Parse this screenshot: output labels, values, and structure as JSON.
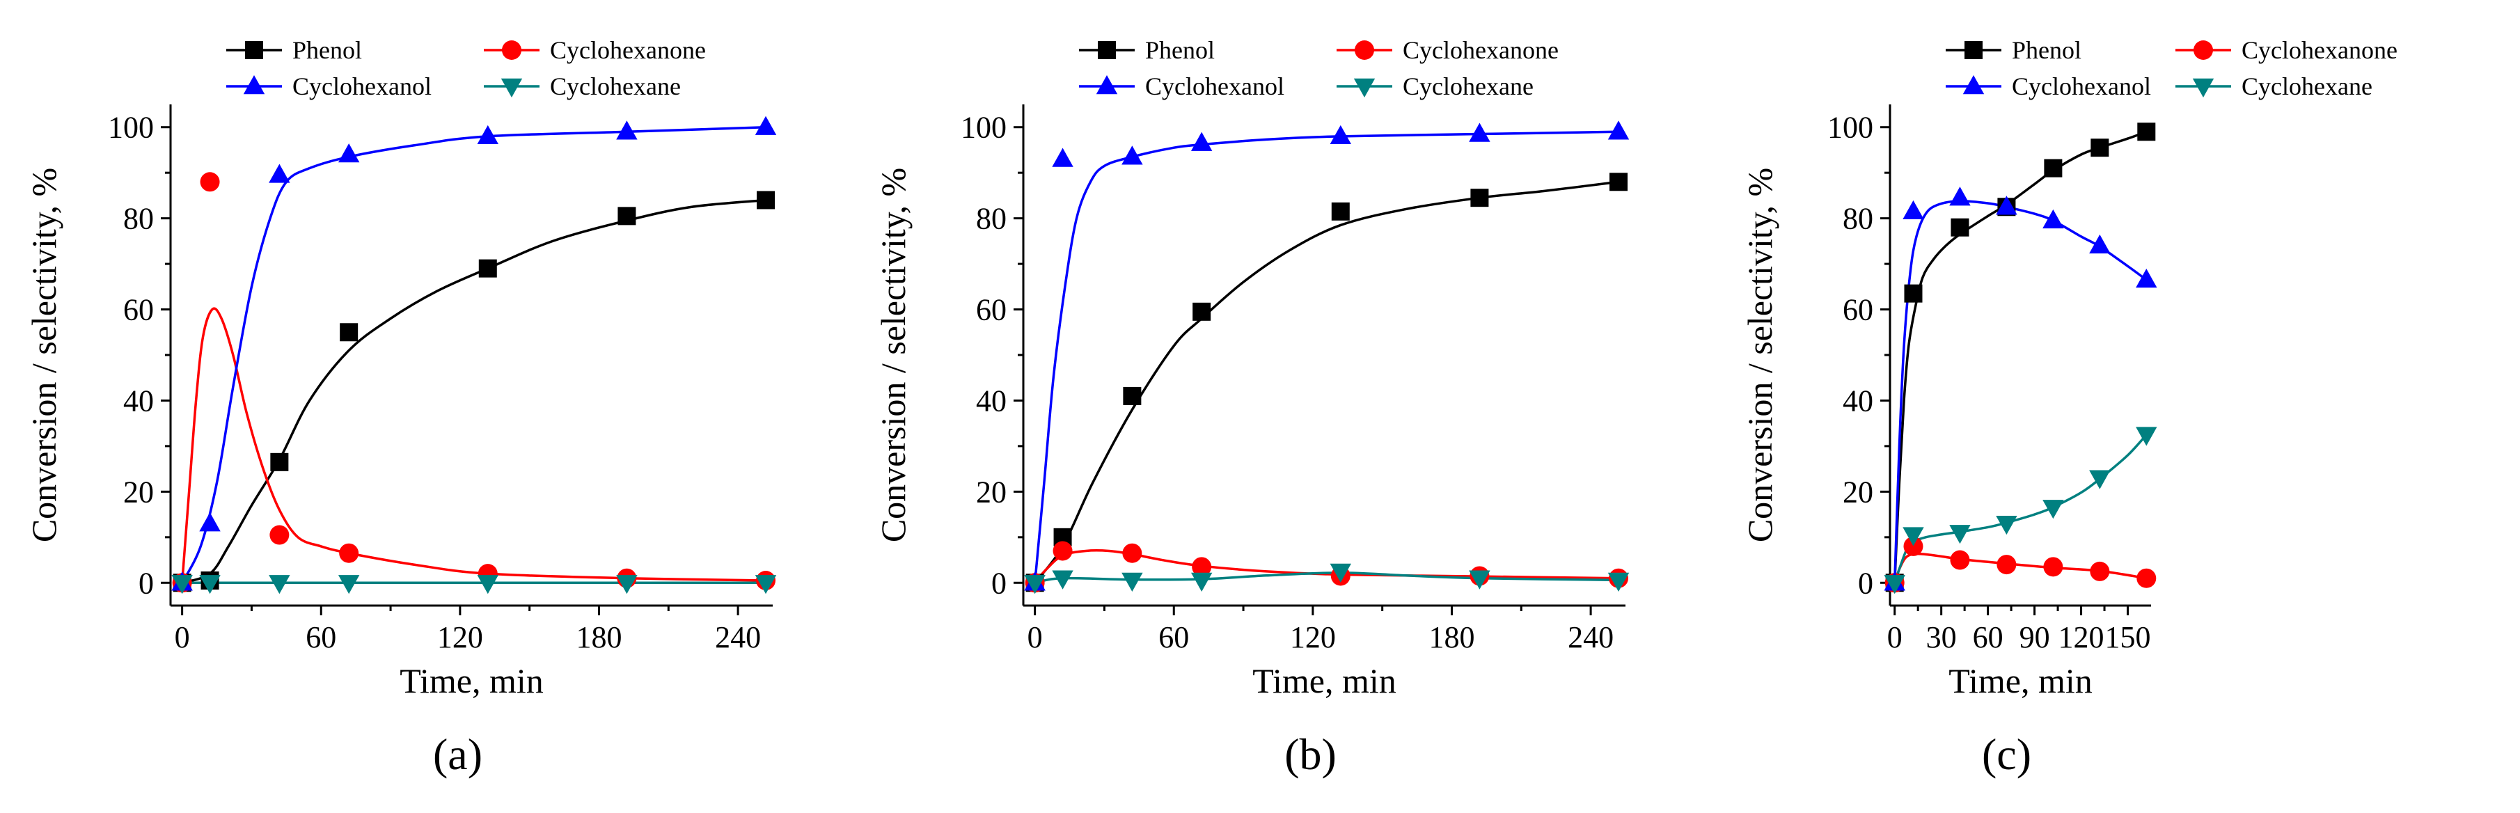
{
  "figure": {
    "panel_labels": [
      "(a)",
      "(b)",
      "(c)"
    ],
    "legend_entries": [
      {
        "name": "Phenol",
        "color": "#000000",
        "marker": "square"
      },
      {
        "name": "Cyclohexanone",
        "color": "#ff0000",
        "marker": "circle"
      },
      {
        "name": "Cyclohexanol",
        "color": "#0000ff",
        "marker": "triangle-up"
      },
      {
        "name": "Cyclohexane",
        "color": "#008080",
        "marker": "triangle-down"
      }
    ]
  },
  "chart_data": [
    {
      "type": "scatter",
      "panel": "(a)",
      "xlabel": "Time, min",
      "ylabel": "Conversion / selectivity, %",
      "xlim": [
        -5,
        255
      ],
      "ylim": [
        -5,
        105
      ],
      "xticks": [
        0,
        60,
        120,
        180,
        240
      ],
      "yticks": [
        0,
        20,
        40,
        60,
        80,
        100
      ],
      "series": [
        {
          "name": "Phenol",
          "color": "#000000",
          "marker": "square",
          "x": [
            0,
            12,
            42,
            72,
            132,
            192,
            252
          ],
          "y": [
            0,
            0.5,
            26.5,
            55,
            69,
            80.5,
            84
          ],
          "fit": [
            [
              0,
              0
            ],
            [
              12,
              2
            ],
            [
              20,
              8
            ],
            [
              30,
              17
            ],
            [
              42,
              27
            ],
            [
              55,
              40
            ],
            [
              72,
              51
            ],
            [
              90,
              58
            ],
            [
              110,
              64
            ],
            [
              132,
              69
            ],
            [
              160,
              75
            ],
            [
              192,
              79.5
            ],
            [
              220,
              82.5
            ],
            [
              252,
              84
            ]
          ]
        },
        {
          "name": "Cyclohexanone",
          "color": "#ff0000",
          "marker": "circle",
          "x": [
            0,
            12,
            42,
            72,
            132,
            192,
            252
          ],
          "y": [
            0,
            88,
            10.5,
            6.5,
            2,
            1,
            0.5
          ],
          "fit": [
            [
              0,
              0
            ],
            [
              3,
              20
            ],
            [
              6,
              40
            ],
            [
              9,
              54
            ],
            [
              13,
              60
            ],
            [
              17,
              58
            ],
            [
              22,
              50
            ],
            [
              28,
              37
            ],
            [
              35,
              25
            ],
            [
              42,
              16
            ],
            [
              50,
              10
            ],
            [
              60,
              8
            ],
            [
              72,
              6.5
            ],
            [
              100,
              4
            ],
            [
              132,
              2
            ],
            [
              192,
              1
            ],
            [
              252,
              0.5
            ]
          ]
        },
        {
          "name": "Cyclohexanol",
          "color": "#0000ff",
          "marker": "triangle-up",
          "x": [
            0,
            12,
            42,
            72,
            132,
            192,
            252
          ],
          "y": [
            0,
            13,
            89.5,
            94,
            98,
            99,
            100
          ],
          "fit": [
            [
              0,
              0
            ],
            [
              8,
              8
            ],
            [
              15,
              22
            ],
            [
              22,
              43
            ],
            [
              30,
              65
            ],
            [
              38,
              80
            ],
            [
              45,
              88
            ],
            [
              55,
              91
            ],
            [
              72,
              93.5
            ],
            [
              100,
              96
            ],
            [
              132,
              98
            ],
            [
              192,
              99
            ],
            [
              252,
              100
            ]
          ]
        },
        {
          "name": "Cyclohexane",
          "color": "#008080",
          "marker": "triangle-down",
          "x": [
            0,
            12,
            42,
            72,
            132,
            192,
            252
          ],
          "y": [
            0,
            0,
            0,
            0,
            0,
            0,
            0
          ],
          "fit": [
            [
              0,
              0
            ],
            [
              252,
              0
            ]
          ]
        }
      ]
    },
    {
      "type": "scatter",
      "panel": "(b)",
      "xlabel": "Time, min",
      "ylabel": "Conversion / selectivity, %",
      "xlim": [
        -5,
        255
      ],
      "ylim": [
        -5,
        105
      ],
      "xticks": [
        0,
        60,
        120,
        180,
        240
      ],
      "yticks": [
        0,
        20,
        40,
        60,
        80,
        100
      ],
      "series": [
        {
          "name": "Phenol",
          "color": "#000000",
          "marker": "square",
          "x": [
            0,
            12,
            42,
            72,
            132,
            192,
            252
          ],
          "y": [
            0,
            10,
            41,
            59.5,
            81.5,
            84.5,
            88
          ],
          "fit": [
            [
              0,
              0
            ],
            [
              12,
              8
            ],
            [
              25,
              22
            ],
            [
              42,
              38
            ],
            [
              60,
              52
            ],
            [
              72,
              58
            ],
            [
              90,
              66
            ],
            [
              110,
              73
            ],
            [
              132,
              78.5
            ],
            [
              160,
              82
            ],
            [
              192,
              84.5
            ],
            [
              220,
              86
            ],
            [
              252,
              88
            ]
          ]
        },
        {
          "name": "Cyclohexanone",
          "color": "#ff0000",
          "marker": "circle",
          "x": [
            0,
            12,
            42,
            72,
            132,
            192,
            252
          ],
          "y": [
            0,
            7,
            6.5,
            3.5,
            1.5,
            1.5,
            1
          ],
          "fit": [
            [
              0,
              0
            ],
            [
              5,
              3
            ],
            [
              12,
              6
            ],
            [
              22,
              7
            ],
            [
              32,
              7
            ],
            [
              42,
              6.3
            ],
            [
              55,
              5
            ],
            [
              72,
              3.7
            ],
            [
              100,
              2.5
            ],
            [
              132,
              1.8
            ],
            [
              192,
              1.4
            ],
            [
              252,
              1
            ]
          ]
        },
        {
          "name": "Cyclohexanol",
          "color": "#0000ff",
          "marker": "triangle-up",
          "x": [
            0,
            12,
            42,
            72,
            132,
            192,
            252
          ],
          "y": [
            0,
            93,
            93.5,
            96.5,
            98,
            98.5,
            99
          ],
          "fit": [
            [
              0,
              0
            ],
            [
              4,
              22
            ],
            [
              8,
              45
            ],
            [
              13,
              65
            ],
            [
              18,
              80
            ],
            [
              24,
              88
            ],
            [
              30,
              91.5
            ],
            [
              42,
              93.5
            ],
            [
              60,
              95.5
            ],
            [
              72,
              96.2
            ],
            [
              100,
              97.3
            ],
            [
              132,
              98
            ],
            [
              192,
              98.5
            ],
            [
              252,
              99
            ]
          ]
        },
        {
          "name": "Cyclohexane",
          "color": "#008080",
          "marker": "triangle-down",
          "x": [
            0,
            12,
            42,
            72,
            132,
            192,
            252
          ],
          "y": [
            0,
            1,
            0.5,
            0.5,
            2.5,
            1,
            0.5
          ],
          "fit": [
            [
              0,
              0
            ],
            [
              12,
              1
            ],
            [
              42,
              0.7
            ],
            [
              72,
              0.8
            ],
            [
              100,
              1.6
            ],
            [
              132,
              2.2
            ],
            [
              160,
              1.6
            ],
            [
              192,
              1
            ],
            [
              252,
              0.6
            ]
          ]
        }
      ]
    },
    {
      "type": "scatter",
      "panel": "(c)",
      "xlabel": "Time, min",
      "ylabel": "Conversion / selectivity, %",
      "xlim": [
        -3,
        165
      ],
      "ylim": [
        -5,
        105
      ],
      "xticks": [
        0,
        30,
        60,
        90,
        120,
        150
      ],
      "yticks": [
        0,
        20,
        40,
        60,
        80,
        100
      ],
      "series": [
        {
          "name": "Phenol",
          "color": "#000000",
          "marker": "square",
          "x": [
            0,
            12,
            42,
            72,
            102,
            132,
            162
          ],
          "y": [
            0,
            63.5,
            78,
            82.5,
            91,
            95.5,
            99
          ],
          "fit": [
            [
              0,
              0
            ],
            [
              3,
              22
            ],
            [
              6,
              40
            ],
            [
              9,
              52
            ],
            [
              13,
              60
            ],
            [
              18,
              67
            ],
            [
              25,
              71
            ],
            [
              33,
              74
            ],
            [
              42,
              76.5
            ],
            [
              60,
              80.5
            ],
            [
              72,
              83
            ],
            [
              90,
              87.5
            ],
            [
              102,
              90.5
            ],
            [
              120,
              94
            ],
            [
              132,
              95.5
            ],
            [
              150,
              97.5
            ],
            [
              162,
              99
            ]
          ]
        },
        {
          "name": "Cyclohexanone",
          "color": "#ff0000",
          "marker": "circle",
          "x": [
            0,
            12,
            42,
            72,
            102,
            132,
            162
          ],
          "y": [
            0,
            8,
            5,
            4,
            3.5,
            2.5,
            1
          ],
          "fit": [
            [
              0,
              0
            ],
            [
              3,
              3
            ],
            [
              7,
              5.5
            ],
            [
              12,
              6.3
            ],
            [
              18,
              6.3
            ],
            [
              30,
              5.8
            ],
            [
              42,
              5.2
            ],
            [
              72,
              4.2
            ],
            [
              102,
              3.3
            ],
            [
              132,
              2.6
            ],
            [
              162,
              1
            ]
          ]
        },
        {
          "name": "Cyclohexanol",
          "color": "#0000ff",
          "marker": "triangle-up",
          "x": [
            0,
            12,
            42,
            72,
            102,
            132,
            162
          ],
          "y": [
            0,
            81.5,
            84.5,
            82.5,
            79.5,
            74,
            66.5
          ],
          "fit": [
            [
              0,
              0
            ],
            [
              3,
              30
            ],
            [
              6,
              52
            ],
            [
              10,
              68
            ],
            [
              14,
              76
            ],
            [
              20,
              81
            ],
            [
              28,
              83
            ],
            [
              42,
              83.8
            ],
            [
              60,
              83.3
            ],
            [
              72,
              82.5
            ],
            [
              90,
              81
            ],
            [
              102,
              79.5
            ],
            [
              120,
              76
            ],
            [
              132,
              73.8
            ],
            [
              150,
              69.5
            ],
            [
              162,
              66.5
            ]
          ]
        },
        {
          "name": "Cyclohexane",
          "color": "#008080",
          "marker": "triangle-down",
          "x": [
            0,
            12,
            42,
            72,
            102,
            132,
            162
          ],
          "y": [
            0,
            10.5,
            11,
            13,
            16.5,
            23,
            32.5
          ],
          "fit": [
            [
              0,
              0
            ],
            [
              4,
              4
            ],
            [
              8,
              7.5
            ],
            [
              12,
              9
            ],
            [
              20,
              10
            ],
            [
              30,
              10.6
            ],
            [
              42,
              11.2
            ],
            [
              60,
              12.2
            ],
            [
              72,
              13.2
            ],
            [
              90,
              15
            ],
            [
              102,
              16.6
            ],
            [
              120,
              19.8
            ],
            [
              132,
              22.8
            ],
            [
              150,
              28
            ],
            [
              162,
              32.5
            ]
          ]
        }
      ]
    }
  ]
}
